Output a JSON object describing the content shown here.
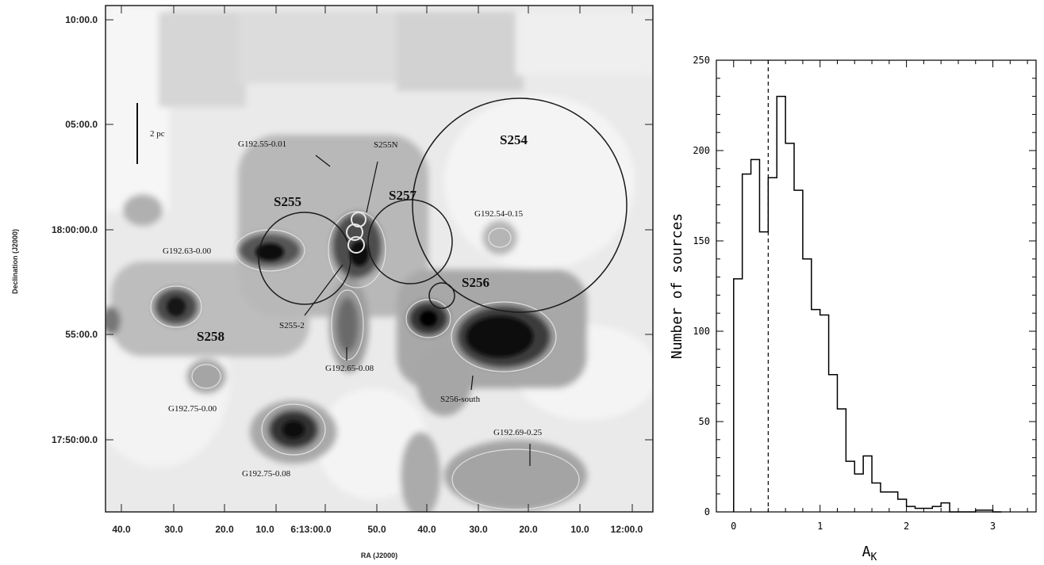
{
  "chart_data": [
    {
      "type": "image",
      "panel": "left",
      "xlabel": "RA (J2000)",
      "ylabel": "Declination (J2000)",
      "x_ticks": [
        "40.0",
        "30.0",
        "20.0",
        "10.0",
        "6:13:00.0",
        "50.0",
        "40.0",
        "30.0",
        "20.0",
        "10.0",
        "12:00.0"
      ],
      "y_ticks": [
        "10:00.0",
        "05:00.0",
        "18:00:00.0",
        "55:00.0",
        "17:50:00.0"
      ],
      "scale_bar_label": "2 pc",
      "annotations": [
        "S254",
        "S255",
        "S257",
        "S256",
        "S258",
        "G192.55-0.01",
        "S255N",
        "G192.54-0.15",
        "G192.63-0.00",
        "S255-2",
        "G192.65-0.08",
        "S256-south",
        "G192.75-0.00",
        "G192.69-0.25",
        "G192.75-0.08"
      ],
      "colors": {
        "frame": "#222222",
        "circle": "#1a1a1a",
        "contour": "#e8e8e8"
      }
    },
    {
      "type": "histogram",
      "panel": "right",
      "xlabel": "A",
      "xlabel_subscript": "K",
      "ylabel": "Number of sources",
      "xlim": [
        -0.2,
        3.5
      ],
      "ylim": [
        0,
        250
      ],
      "x_ticks": [
        0,
        1,
        2,
        3
      ],
      "y_ticks": [
        0,
        50,
        100,
        150,
        200,
        250
      ],
      "bin_edges": [
        0.0,
        0.1,
        0.2,
        0.3,
        0.4,
        0.5,
        0.6,
        0.7,
        0.8,
        0.9,
        1.0,
        1.1,
        1.2,
        1.3,
        1.4,
        1.5,
        1.6,
        1.7,
        1.8,
        1.9,
        2.0,
        2.1,
        2.2,
        2.3,
        2.4,
        2.5,
        2.6,
        2.7,
        2.8,
        2.9,
        3.0,
        3.1
      ],
      "counts": [
        129,
        187,
        195,
        155,
        185,
        230,
        204,
        178,
        140,
        112,
        109,
        76,
        57,
        28,
        21,
        31,
        16,
        11,
        11,
        7,
        3,
        2,
        2,
        3,
        5,
        0,
        0,
        0,
        1,
        1,
        0
      ],
      "dashed_line_x": 0.4,
      "colors": {
        "line": "#000000"
      }
    }
  ]
}
